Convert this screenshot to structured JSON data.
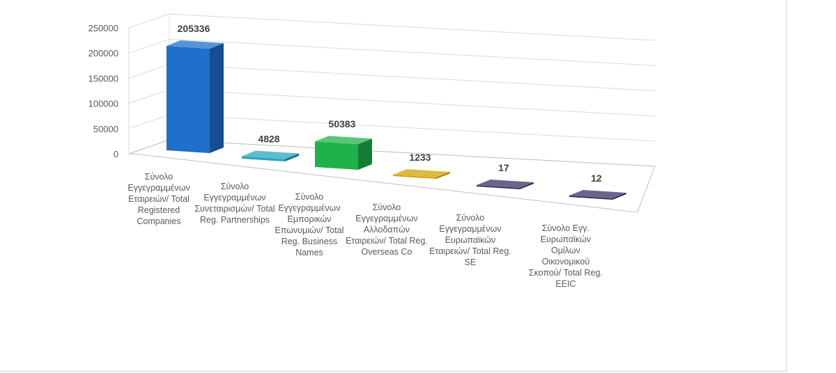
{
  "chart_data": {
    "type": "bar",
    "style": "3d-column",
    "categories": [
      "Σύνολο Εγγεγραμμένων Εταιρειών/ Total Registered Companies",
      "Σύνολο Εγγεγραμμένων Συνεταιρισμών/ Total Reg. Partnerships",
      "Σύνολο Εγγεγραμμένων Εμπορικών Επωνυμιών/ Total Reg. Business Names",
      "Σύνολο Εγγεγραμμένων Αλλοδαπών Εταιρειών/ Total Reg. Overseas Co",
      "Σύνολο Εγγεγραμμένων Ευρωπαϊκών Εταιρειών/ Total Reg. SE",
      "Σύνολο Εγγ. Ευρωπαϊκών Ομίλων Οικονομικού Σκοπού/ Total Reg. EEIC"
    ],
    "values": [
      205336,
      4828,
      50383,
      1233,
      17,
      12
    ],
    "data_labels": [
      "205336",
      "4828",
      "50383",
      "1233",
      "17",
      "12"
    ],
    "colors": [
      "#1f6fcc",
      "#2aa6bf",
      "#21b14b",
      "#d4a300",
      "#3e2f63",
      "#3e2f63"
    ],
    "yticks": [
      "0",
      "50000",
      "100000",
      "150000",
      "200000",
      "250000"
    ],
    "ylim": [
      0,
      250000
    ],
    "grid": true,
    "legend": "none",
    "title": "",
    "xlabel": "",
    "ylabel": ""
  }
}
